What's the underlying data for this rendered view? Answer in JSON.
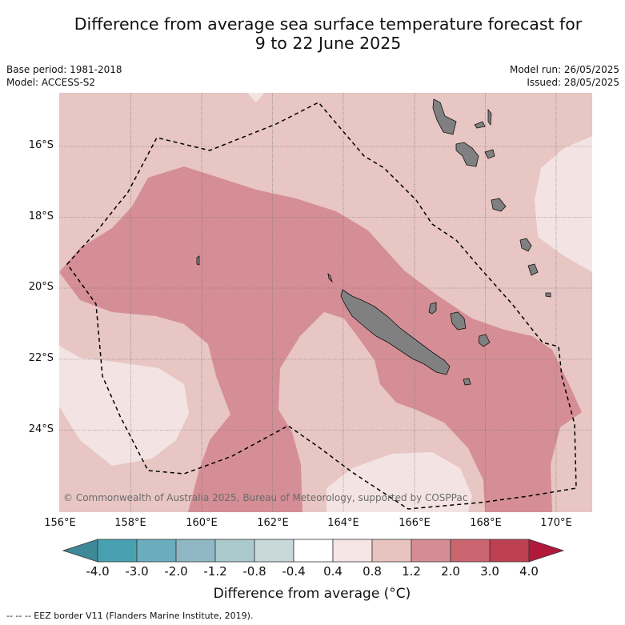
{
  "header": {
    "title_line1": "Difference from average sea surface temperature forecast for",
    "title_line2": "9 to 22 June 2025",
    "base_period": "Base period: 1981-2018",
    "model": "Model: ACCESS-S2",
    "model_run": "Model run: 26/05/2025",
    "issued": "Issued: 28/05/2025"
  },
  "map": {
    "copyright": "© Commonwealth of Australia 2025, Bureau of Meteorology, supported by COSPPac",
    "lat_labels": [
      "16°S",
      "18°S",
      "20°S",
      "22°S",
      "24°S"
    ],
    "lon_labels": [
      "156°E",
      "158°E",
      "160°E",
      "162°E",
      "164°E",
      "166°E",
      "168°E",
      "170°E"
    ],
    "extent": {
      "lon": [
        156,
        171
      ],
      "lat": [
        -14.5,
        -26.3
      ]
    },
    "colors": {
      "band_0_4_to_0_8": "#f3e4e3",
      "band_0_8_to_1_2": "#e7c6c3",
      "band_1_2_to_2_0": "#d58e95",
      "land": "#808080"
    }
  },
  "colorbar": {
    "ticks": [
      "-4.0",
      "-3.0",
      "-2.0",
      "-1.2",
      "-0.8",
      "-0.4",
      "0.4",
      "0.8",
      "1.2",
      "2.0",
      "3.0",
      "4.0"
    ],
    "colors": [
      "#3e8898",
      "#48a1b0",
      "#6badbd",
      "#8fb8c4",
      "#aac9cc",
      "#c9d8da",
      "#ffffff",
      "#f5e6e5",
      "#e8c4c0",
      "#d58c95",
      "#cb6570",
      "#bd4150",
      "#b0193a"
    ],
    "title": "Difference from average (°C)"
  },
  "legend": {
    "eez": "--  --  -- EEZ border V11 (Flanders Marine Institute, 2019)."
  }
}
